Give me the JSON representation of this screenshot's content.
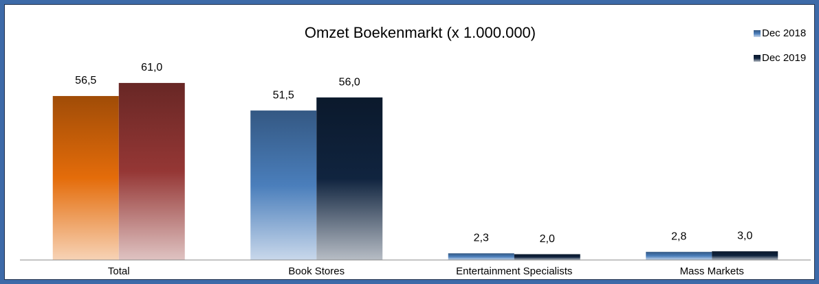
{
  "chart_data": {
    "type": "bar",
    "title": "Omzet Boekenmarkt (x 1.000.000)",
    "categories": [
      "Total",
      "Book Stores",
      "Entertainment Specialists",
      "Mass Markets"
    ],
    "series": [
      {
        "name": "Dec 2018",
        "color": "#4a7ebb",
        "colors": [
          "#e46c0a",
          "#4a7ebb",
          "#4a7ebb",
          "#4a7ebb"
        ],
        "values": [
          56.5,
          51.5,
          2.3,
          2.8
        ],
        "value_labels": [
          "56,5",
          "51,5",
          "2,3",
          "2,8"
        ]
      },
      {
        "name": "Dec 2019",
        "color": "#10243f",
        "colors": [
          "#953735",
          "#10243f",
          "#10243f",
          "#10243f"
        ],
        "values": [
          61.0,
          56.0,
          2.0,
          3.0
        ],
        "value_labels": [
          "61,0",
          "56,0",
          "2,0",
          "3,0"
        ]
      }
    ],
    "ylim": [
      0,
      65
    ],
    "legend": "top-right"
  }
}
